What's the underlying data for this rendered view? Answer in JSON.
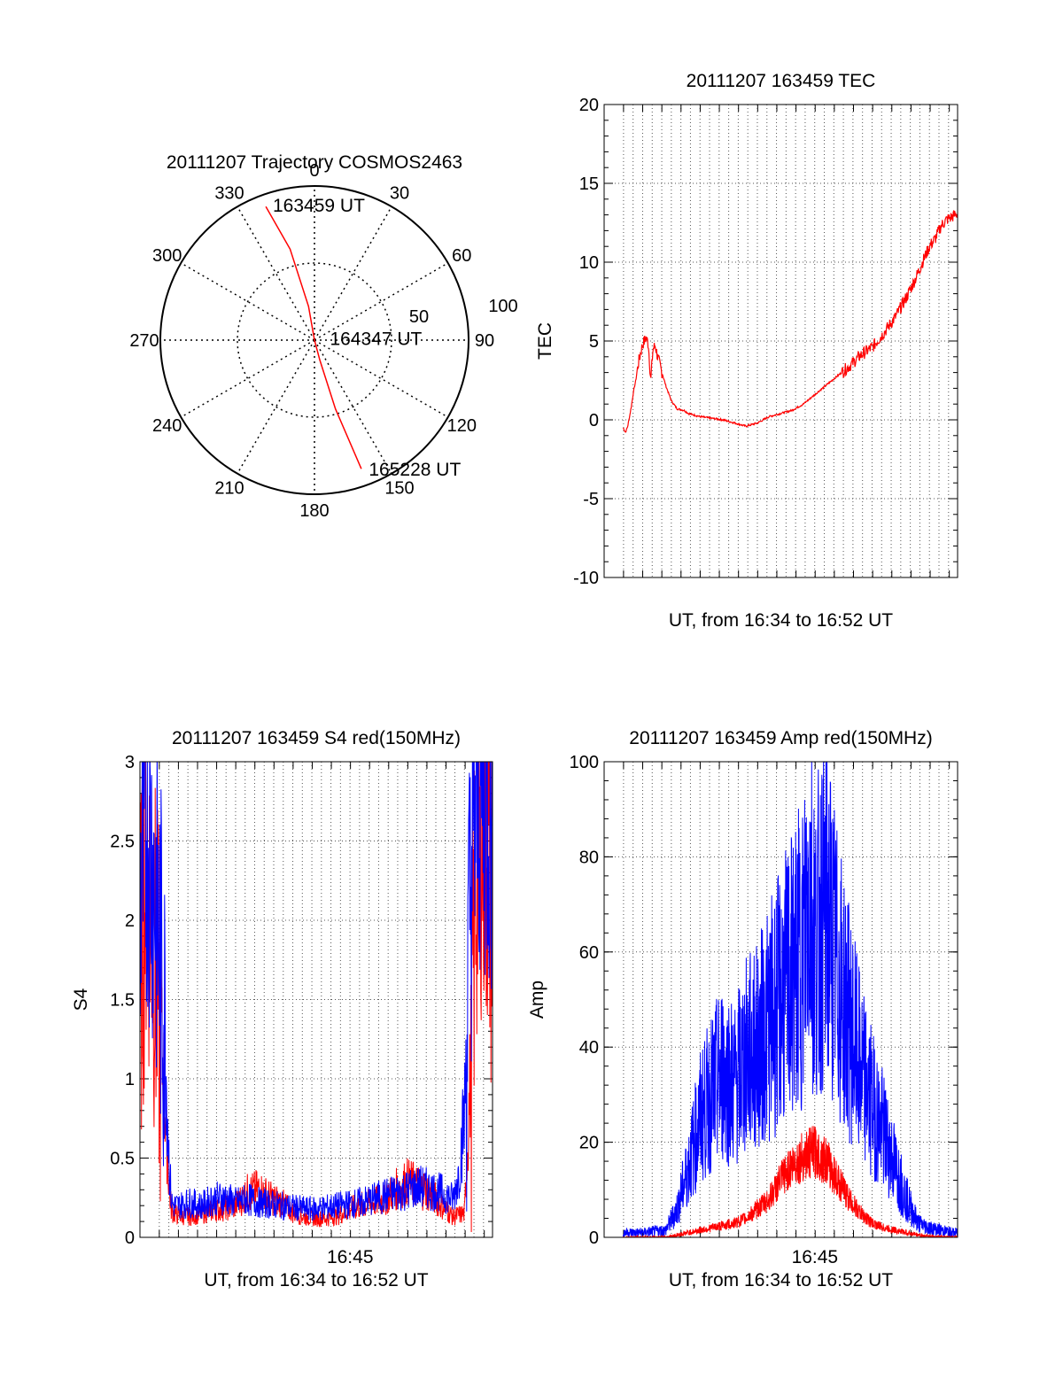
{
  "chart_data": [
    {
      "type": "polar",
      "title": "20111207 Trajectory COSMOS2463",
      "angle_labels": [
        "0",
        "30",
        "60",
        "90",
        "120",
        "150",
        "180",
        "210",
        "240",
        "270",
        "300",
        "330"
      ],
      "radial_labels": [
        "50",
        "100"
      ],
      "series": [
        {
          "color": "#ff0000",
          "points": [
            {
              "az": 340,
              "el": 7
            },
            {
              "az": 345,
              "el": 35
            },
            {
              "az": 350,
              "el": 70
            },
            {
              "az": 0,
              "el": 90
            },
            {
              "az": 165,
              "el": 78
            },
            {
              "az": 163,
              "el": 48
            },
            {
              "az": 160,
              "el": 10
            }
          ]
        }
      ],
      "annotations": [
        {
          "text": "163459 UT",
          "az": 342,
          "el": 8
        },
        {
          "text": "164347 UT",
          "az": 88,
          "el": 82
        },
        {
          "text": "165228 UT",
          "az": 158,
          "el": 8
        }
      ]
    },
    {
      "type": "line",
      "title": "20111207 163459 TEC",
      "xlabel": "UT, from 16:34 to 16:52 UT",
      "ylabel": "TEC",
      "xlim": [
        16.5664,
        16.8744
      ],
      "ylim": [
        -10,
        20
      ],
      "yticks": [
        -10,
        -5,
        0,
        5,
        10,
        15,
        20
      ],
      "grid": true,
      "series": [
        {
          "color": "#ff0000",
          "x": [
            16.583,
            16.585,
            16.587,
            16.59,
            16.592,
            16.594,
            16.596,
            16.598,
            16.6,
            16.603,
            16.605,
            16.607,
            16.609,
            16.611,
            16.613,
            16.616,
            16.62,
            16.625,
            16.63,
            16.636,
            16.64,
            16.65,
            16.66,
            16.67,
            16.68,
            16.69,
            16.7,
            16.71,
            16.72,
            16.73,
            16.74,
            16.75,
            16.76,
            16.77,
            16.78,
            16.79,
            16.8,
            16.81,
            16.82,
            16.83,
            16.838,
            16.845,
            16.85,
            16.855,
            16.86,
            16.865,
            16.87,
            16.8744
          ],
          "y": [
            -0.5,
            -0.8,
            -0.4,
            0.8,
            1.8,
            2.5,
            3.5,
            4.2,
            4.8,
            5.2,
            4.8,
            2.5,
            4.5,
            4.7,
            4.0,
            3.2,
            2.2,
            1.2,
            0.7,
            0.6,
            0.4,
            0.2,
            0.1,
            0.0,
            -0.2,
            -0.4,
            -0.2,
            0.2,
            0.4,
            0.6,
            1.0,
            1.6,
            2.2,
            2.8,
            3.4,
            4.1,
            4.6,
            5.5,
            6.5,
            7.8,
            9.0,
            10.2,
            11.0,
            11.5,
            12.3,
            12.7,
            12.9,
            13.1
          ]
        }
      ]
    },
    {
      "type": "line",
      "title": "20111207 163459 S4 red(150MHz)",
      "xlabel": "UT, from 16:34 to 16:52 UT",
      "ylabel": "S4",
      "xlim": [
        16.5664,
        16.8744
      ],
      "ylim": [
        0,
        3
      ],
      "yticks": [
        0,
        0.5,
        1,
        1.5,
        2,
        2.5,
        3
      ],
      "xticks": [
        {
          "value": 16.75,
          "label": "16:45"
        }
      ],
      "grid": true,
      "series": [
        {
          "name": "",
          "color": "#ff0000",
          "x": [
            16.566,
            16.572,
            16.577,
            16.583,
            16.587,
            16.59,
            16.592,
            16.594,
            16.596,
            16.6,
            16.61,
            16.62,
            16.63,
            16.64,
            16.65,
            16.66,
            16.67,
            16.68,
            16.69,
            16.7,
            16.71,
            16.72,
            16.73,
            16.74,
            16.75,
            16.76,
            16.77,
            16.78,
            16.79,
            16.8,
            16.81,
            16.82,
            16.83,
            16.84,
            16.845,
            16.85,
            16.855,
            16.86,
            16.865,
            16.87,
            16.8744
          ],
          "y": [
            1.6,
            2.3,
            2.0,
            1.4,
            1.0,
            0.6,
            0.3,
            0.17,
            0.15,
            0.14,
            0.13,
            0.15,
            0.17,
            0.18,
            0.2,
            0.28,
            0.3,
            0.25,
            0.22,
            0.16,
            0.13,
            0.12,
            0.12,
            0.14,
            0.18,
            0.2,
            0.22,
            0.24,
            0.3,
            0.35,
            0.32,
            0.28,
            0.2,
            0.13,
            0.14,
            0.15,
            1.0,
            2.3,
            2.6,
            2.4,
            1.9
          ]
        },
        {
          "name": "",
          "color": "#0000ff",
          "x": [
            16.566,
            16.572,
            16.577,
            16.583,
            16.587,
            16.59,
            16.592,
            16.594,
            16.596,
            16.6,
            16.61,
            16.62,
            16.63,
            16.64,
            16.65,
            16.66,
            16.67,
            16.68,
            16.69,
            16.7,
            16.71,
            16.72,
            16.73,
            16.74,
            16.75,
            16.76,
            16.77,
            16.78,
            16.79,
            16.8,
            16.81,
            16.82,
            16.83,
            16.84,
            16.845,
            16.85,
            16.855,
            16.86,
            16.865,
            16.87,
            16.8744
          ],
          "y": [
            2.1,
            2.6,
            2.4,
            1.9,
            1.5,
            0.9,
            0.45,
            0.22,
            0.2,
            0.2,
            0.22,
            0.2,
            0.24,
            0.25,
            0.22,
            0.24,
            0.22,
            0.21,
            0.2,
            0.19,
            0.18,
            0.18,
            0.19,
            0.2,
            0.21,
            0.22,
            0.24,
            0.26,
            0.28,
            0.3,
            0.32,
            0.3,
            0.28,
            0.24,
            0.4,
            0.8,
            2.2,
            2.7,
            2.8,
            2.7,
            2.6
          ]
        }
      ]
    },
    {
      "type": "line",
      "title": "20111207 163459 Amp red(150MHz)",
      "xlabel": "UT, from 16:34 to 16:52 UT",
      "ylabel": "Amp",
      "xlim": [
        16.5664,
        16.8744
      ],
      "ylim": [
        0,
        100
      ],
      "yticks": [
        0,
        20,
        40,
        60,
        80,
        100
      ],
      "xticks": [
        {
          "value": 16.75,
          "label": "16:45"
        }
      ],
      "grid": true,
      "series": [
        {
          "name": "",
          "color": "#0000ff",
          "x": [
            16.583,
            16.6,
            16.62,
            16.63,
            16.64,
            16.65,
            16.66,
            16.67,
            16.68,
            16.69,
            16.7,
            16.71,
            16.72,
            16.73,
            16.74,
            16.745,
            16.75,
            16.755,
            16.76,
            16.77,
            16.78,
            16.79,
            16.8,
            16.81,
            16.82,
            16.83,
            16.84,
            16.85,
            16.86,
            16.87,
            16.8744
          ],
          "y": [
            1,
            1,
            1.5,
            6,
            15,
            25,
            30,
            35,
            32,
            38,
            40,
            45,
            50,
            55,
            60,
            75,
            62,
            65,
            70,
            55,
            45,
            35,
            28,
            22,
            15,
            8,
            3,
            2,
            1.5,
            1,
            1
          ]
        },
        {
          "name": "",
          "color": "#ff0000",
          "x": [
            16.583,
            16.62,
            16.63,
            16.64,
            16.65,
            16.66,
            16.67,
            16.68,
            16.69,
            16.7,
            16.71,
            16.72,
            16.73,
            16.74,
            16.75,
            16.76,
            16.77,
            16.78,
            16.79,
            16.8,
            16.81,
            16.82,
            16.83,
            16.84,
            16.85,
            16.8744
          ],
          "y": [
            0,
            0,
            0.5,
            1,
            1.5,
            2,
            2.5,
            3,
            4,
            6,
            8,
            12,
            15,
            17,
            18,
            16,
            12,
            8,
            5,
            3,
            2,
            1.5,
            1,
            0.5,
            0.2,
            0
          ]
        }
      ]
    }
  ]
}
